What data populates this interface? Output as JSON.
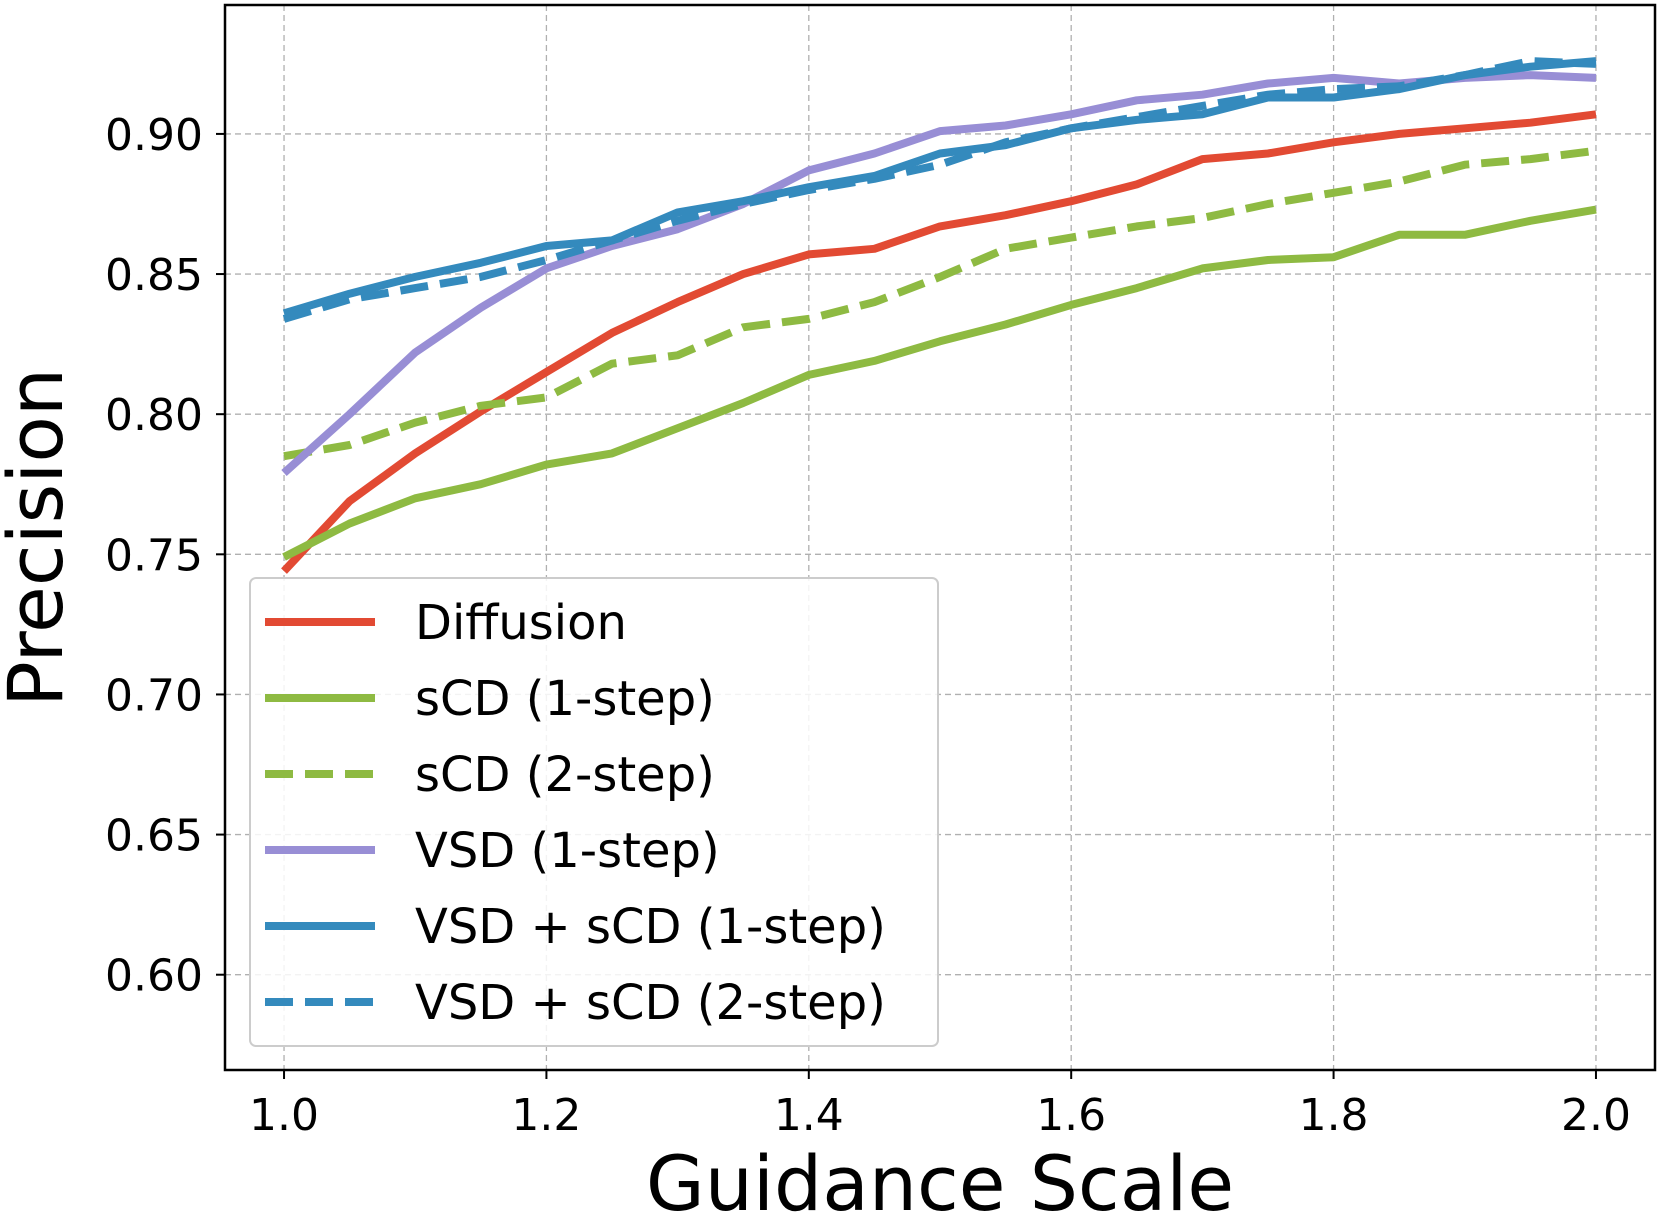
{
  "chart_data": {
    "type": "line",
    "title": "",
    "xlabel": "Guidance Scale",
    "ylabel": "Precision",
    "xlim": [
      0.955,
      2.045
    ],
    "ylim": [
      0.566,
      0.946
    ],
    "xticks": [
      1.0,
      1.2,
      1.4,
      1.6,
      1.8,
      2.0
    ],
    "xtick_labels": [
      "1.0",
      "1.2",
      "1.4",
      "1.6",
      "1.8",
      "2.0"
    ],
    "yticks": [
      0.6,
      0.65,
      0.7,
      0.75,
      0.8,
      0.85,
      0.9
    ],
    "ytick_labels": [
      "0.60",
      "0.65",
      "0.70",
      "0.75",
      "0.80",
      "0.85",
      "0.90"
    ],
    "grid": true,
    "legend_position": "lower-left",
    "x": [
      1.0,
      1.05,
      1.1,
      1.15,
      1.2,
      1.25,
      1.3,
      1.35,
      1.4,
      1.45,
      1.5,
      1.55,
      1.6,
      1.65,
      1.7,
      1.75,
      1.8,
      1.85,
      1.9,
      1.95,
      2.0
    ],
    "series": [
      {
        "name": "Diffusion",
        "color": "#e24a33",
        "dashed": false,
        "values": [
          0.744,
          0.769,
          0.786,
          0.801,
          0.815,
          0.829,
          0.84,
          0.85,
          0.857,
          0.859,
          0.867,
          0.871,
          0.876,
          0.882,
          0.891,
          0.893,
          0.897,
          0.9,
          0.902,
          0.904,
          0.907
        ]
      },
      {
        "name": "sCD (1-step)",
        "color": "#8eba42",
        "dashed": false,
        "values": [
          0.749,
          0.761,
          0.77,
          0.775,
          0.782,
          0.786,
          0.795,
          0.804,
          0.814,
          0.819,
          0.826,
          0.832,
          0.839,
          0.845,
          0.852,
          0.855,
          0.856,
          0.864,
          0.864,
          0.869,
          0.873
        ]
      },
      {
        "name": "sCD (2-step)",
        "color": "#8eba42",
        "dashed": true,
        "values": [
          0.785,
          0.789,
          0.797,
          0.803,
          0.806,
          0.818,
          0.821,
          0.831,
          0.834,
          0.84,
          0.849,
          0.859,
          0.863,
          0.867,
          0.87,
          0.875,
          0.879,
          0.883,
          0.889,
          0.891,
          0.894
        ]
      },
      {
        "name": "VSD (1-step)",
        "color": "#988ed5",
        "dashed": false,
        "values": [
          0.779,
          0.8,
          0.822,
          0.838,
          0.852,
          0.86,
          0.866,
          0.875,
          0.887,
          0.893,
          0.901,
          0.903,
          0.907,
          0.912,
          0.914,
          0.918,
          0.92,
          0.918,
          0.92,
          0.921,
          0.92
        ]
      },
      {
        "name": "VSD + sCD (1-step)",
        "color": "#348abd",
        "dashed": false,
        "values": [
          0.836,
          0.843,
          0.849,
          0.854,
          0.86,
          0.862,
          0.872,
          0.876,
          0.881,
          0.885,
          0.893,
          0.896,
          0.902,
          0.905,
          0.907,
          0.913,
          0.913,
          0.916,
          0.921,
          0.924,
          0.926
        ]
      },
      {
        "name": "VSD + sCD (2-step)",
        "color": "#348abd",
        "dashed": true,
        "values": [
          0.834,
          0.841,
          0.845,
          0.849,
          0.855,
          0.862,
          0.869,
          0.875,
          0.88,
          0.884,
          0.889,
          0.897,
          0.902,
          0.906,
          0.91,
          0.914,
          0.916,
          0.917,
          0.921,
          0.926,
          0.925
        ]
      }
    ]
  }
}
